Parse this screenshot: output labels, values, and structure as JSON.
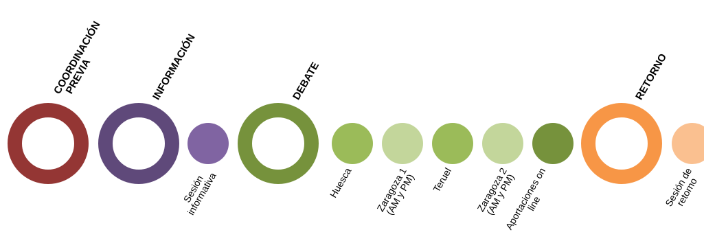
{
  "colors": {
    "coordination": "#943634",
    "information": "#5f497a",
    "information_step": "#8064a2",
    "debate": "#76923c",
    "debate_step_dark": "#9bbb59",
    "debate_step_light": "#c3d69b",
    "debate_step_deep": "#76923c",
    "return": "#f79646",
    "return_step": "#fac090"
  },
  "phases": [
    {
      "line1": "COORDINACIÓN",
      "line2": "PREVIA"
    },
    {
      "line1": "INFORMACIÓN",
      "line2": ""
    },
    {
      "line1": "DEBATE",
      "line2": ""
    },
    {
      "line1": "RETORNO",
      "line2": ""
    }
  ],
  "steps": [
    {
      "line1": "Sesión",
      "line2": "informativa"
    },
    {
      "line1": "Huesca",
      "line2": ""
    },
    {
      "line1": "Zaragoza 1",
      "line2": "(AM y PM)"
    },
    {
      "line1": "Teruel",
      "line2": ""
    },
    {
      "line1": "Zaragoza 2",
      "line2": "(AM y PM)"
    },
    {
      "line1": "Aportaciones on",
      "line2": "line"
    },
    {
      "line1": "Sesión de",
      "line2": "retorno"
    }
  ]
}
